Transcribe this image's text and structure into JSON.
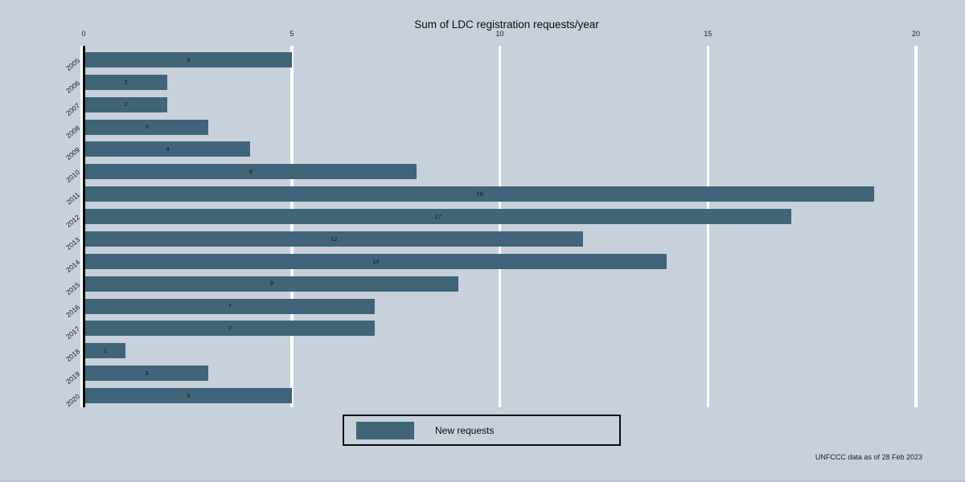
{
  "title": "Sum of LDC registration requests/year",
  "footnote": "UNFCCC data as of 28 Feb 2023",
  "legend": {
    "label": "New requests"
  },
  "colors": {
    "background": "#c7d1dc",
    "bar": "#406579",
    "gridline": "#ffffff",
    "axis": "#000000"
  },
  "chart_data": {
    "type": "bar",
    "orientation": "horizontal",
    "title": "Sum of LDC registration requests/year",
    "xlabel": "",
    "ylabel": "",
    "categories": [
      "2005",
      "2006",
      "2007",
      "2008",
      "2009",
      "2010",
      "2011",
      "2012",
      "2013",
      "2014",
      "2015",
      "2016",
      "2017",
      "2018",
      "2019",
      "2020"
    ],
    "series": [
      {
        "name": "New requests",
        "values": [
          5,
          2,
          2,
          3,
          4,
          8,
          19,
          17,
          12,
          14,
          9,
          7,
          7,
          1,
          3,
          5
        ]
      }
    ],
    "bar_labels": true,
    "xlim": [
      0,
      20
    ],
    "xticks": [
      0,
      5,
      10,
      15,
      20
    ],
    "xaxis_position": "top",
    "grid": "vertical-white-lines",
    "legend_position": "bottom-center"
  }
}
